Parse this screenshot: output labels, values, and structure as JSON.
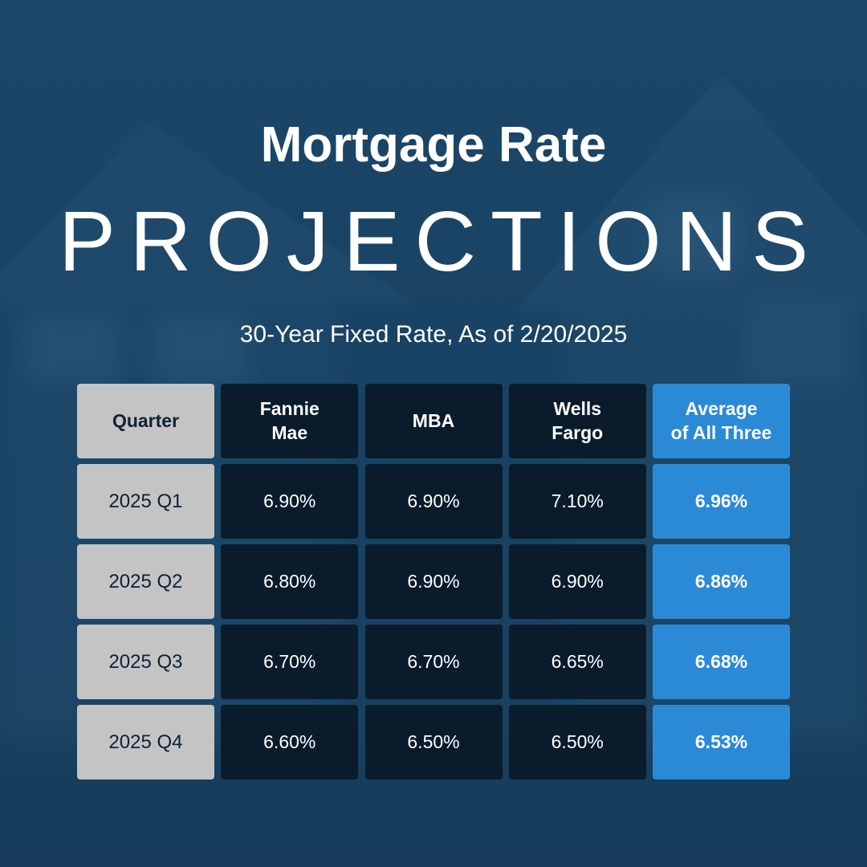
{
  "title_line1": "Mortgage Rate",
  "title_line2": "PROJECTIONS",
  "subtitle": "30-Year Fixed Rate, As of 2/20/2025",
  "colors": {
    "background": "#1f4b6c",
    "quarter_column": "#c4c4c4",
    "source_columns": "#0a1c2b",
    "average_column": "#2b8ad6",
    "text_light": "#ffffff",
    "text_dark": "#0d2235"
  },
  "chart_data": {
    "type": "table",
    "columns": [
      "Quarter",
      "Fannie Mae",
      "MBA",
      "Wells Fargo",
      "Average of All Three"
    ],
    "header_lines": [
      [
        "Quarter"
      ],
      [
        "Fannie",
        "Mae"
      ],
      [
        "MBA"
      ],
      [
        "Wells",
        "Fargo"
      ],
      [
        "Average",
        "of All Three"
      ]
    ],
    "rows": [
      [
        "2025 Q1",
        "6.90%",
        "6.90%",
        "7.10%",
        "6.96%"
      ],
      [
        "2025 Q2",
        "6.80%",
        "6.90%",
        "6.90%",
        "6.86%"
      ],
      [
        "2025 Q3",
        "6.70%",
        "6.70%",
        "6.65%",
        "6.68%"
      ],
      [
        "2025 Q4",
        "6.60%",
        "6.50%",
        "6.50%",
        "6.53%"
      ]
    ]
  }
}
